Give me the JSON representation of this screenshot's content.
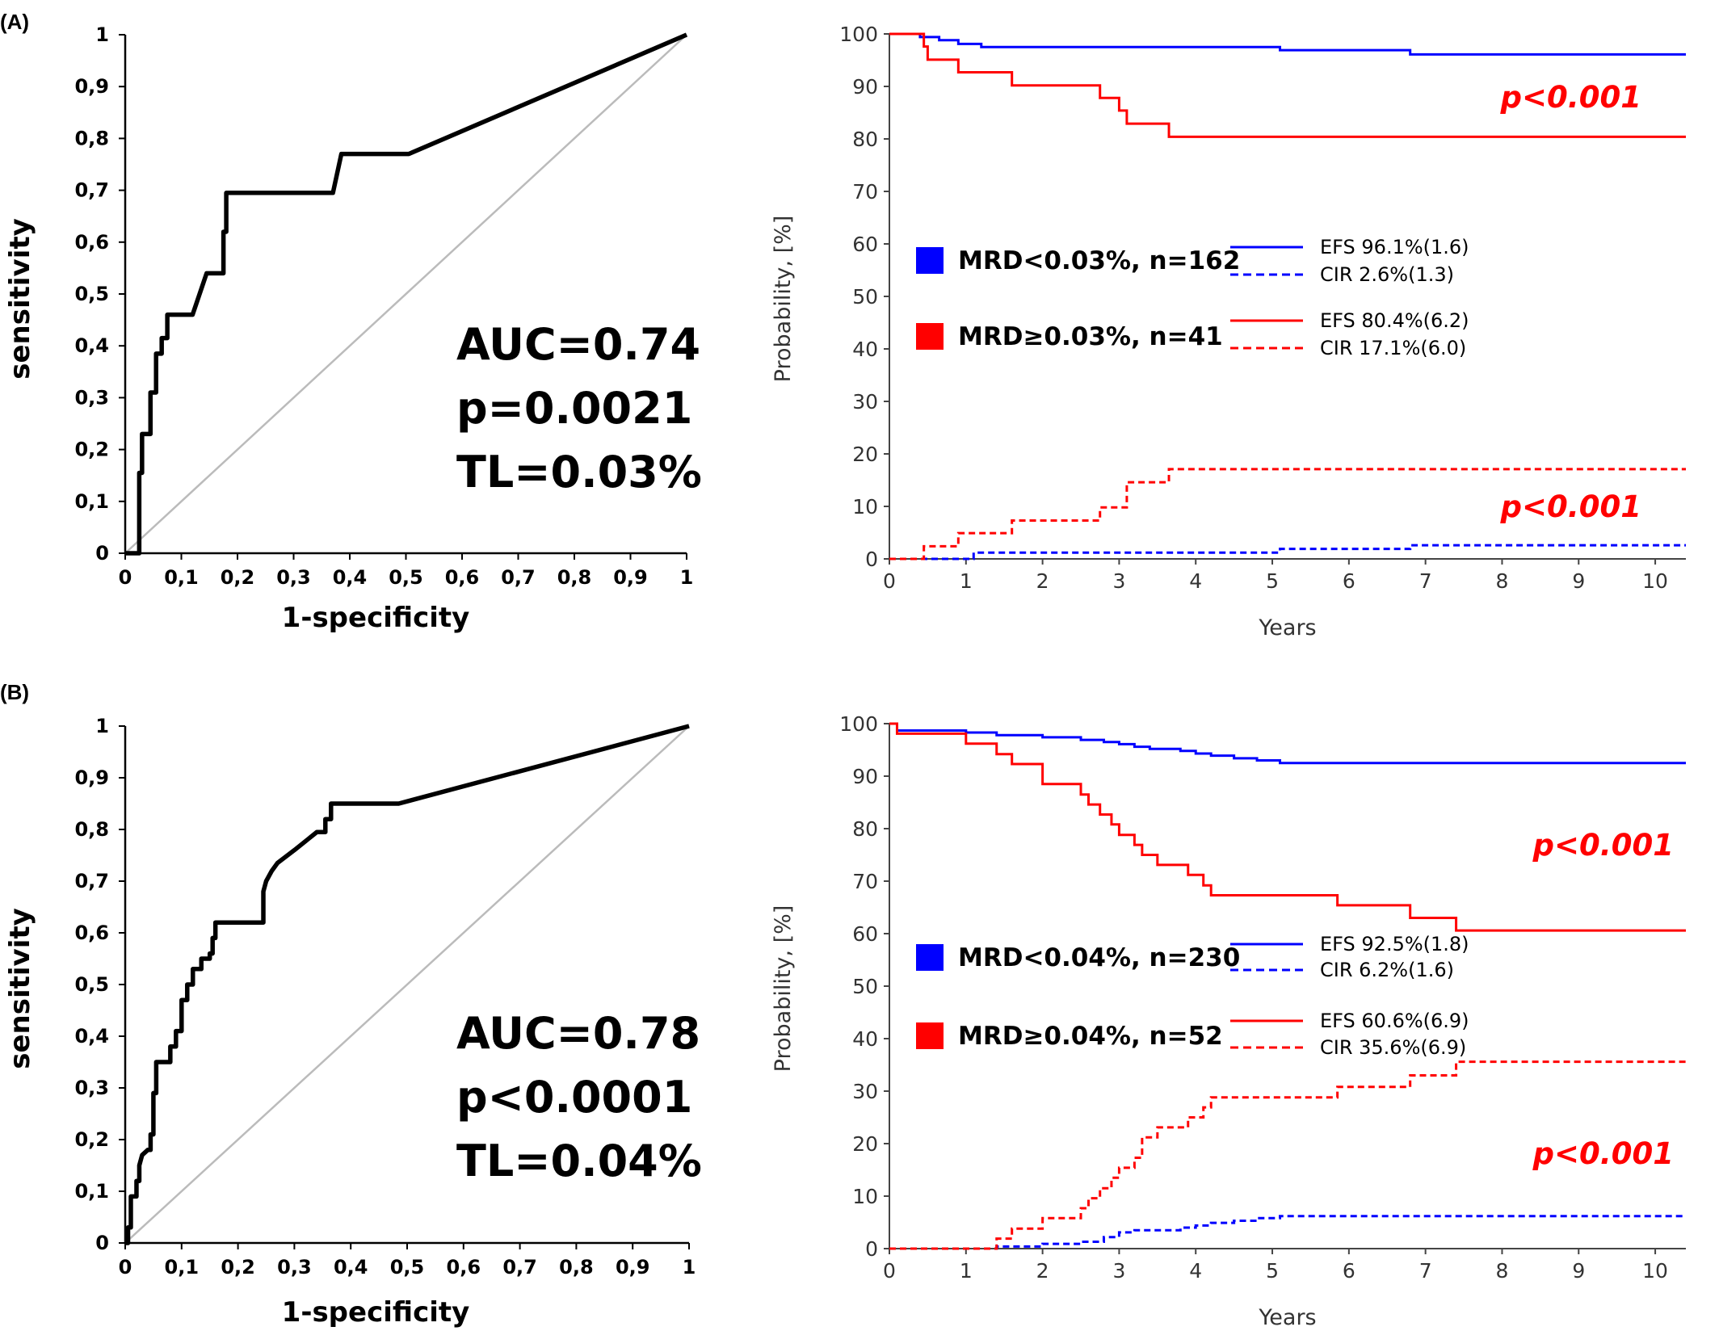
{
  "colors": {
    "blue": "#0000ff",
    "red": "#ff0000",
    "black": "#000000",
    "diag": "#bbbbbb"
  },
  "chart_data": [
    {
      "type": "line",
      "panel": "(A)",
      "xlabel": "1-specificity",
      "ylabel": "sensitivity",
      "xlim": [
        0,
        1
      ],
      "ylim": [
        0,
        1
      ],
      "x_tick_labels": [
        "0",
        "0,1",
        "0,2",
        "0,3",
        "0,4",
        "0,5",
        "0,6",
        "0,7",
        "0,8",
        "0,9",
        "1"
      ],
      "y_tick_labels": [
        "0",
        "0,1",
        "0,2",
        "0,3",
        "0,4",
        "0,5",
        "0,6",
        "0,7",
        "0,8",
        "0,9",
        "1"
      ],
      "annotations": [
        "AUC=0.74",
        "p=0.0021",
        "TL=0.03%"
      ],
      "series": [
        {
          "x": [
            0,
            0.025,
            0.025,
            0.03,
            0.03,
            0.045,
            0.045,
            0.055,
            0.055,
            0.065,
            0.065,
            0.075,
            0.075,
            0.12,
            0.145,
            0.175,
            0.175,
            0.18,
            0.18,
            0.37,
            0.385,
            0.385,
            0.505,
            1
          ],
          "y": [
            0,
            0,
            0.155,
            0.155,
            0.23,
            0.23,
            0.31,
            0.31,
            0.385,
            0.385,
            0.415,
            0.415,
            0.46,
            0.46,
            0.54,
            0.54,
            0.62,
            0.62,
            0.695,
            0.695,
            0.77,
            0.77,
            0.77,
            1
          ]
        },
        {
          "x": [
            0,
            1
          ],
          "y": [
            0,
            1
          ]
        }
      ]
    },
    {
      "type": "line",
      "xlabel": "Years",
      "ylabel": "Probability, [%]",
      "xlim": [
        0,
        10.4
      ],
      "ylim": [
        0,
        100
      ],
      "x_ticks": [
        0,
        1,
        2,
        3,
        4,
        5,
        6,
        7,
        8,
        9,
        10
      ],
      "y_ticks": [
        0,
        10,
        20,
        30,
        40,
        50,
        60,
        70,
        80,
        90,
        100
      ],
      "groups": [
        {
          "label": "MRD<0.03%, n=162",
          "color": "blue"
        },
        {
          "label": "MRD≥0.03%, n=41",
          "color": "red"
        }
      ],
      "p_values": [
        "p<0.001",
        "p<0.001"
      ],
      "series": [
        {
          "name": "EFS 96.1%(1.6)",
          "color": "blue",
          "dash": false,
          "x": [
            0,
            0.4,
            0.4,
            0.65,
            0.65,
            0.9,
            0.9,
            1.2,
            1.2,
            5.1,
            5.1,
            6.8,
            6.8,
            10.4
          ],
          "y": [
            100,
            100,
            99.4,
            99.4,
            98.8,
            98.8,
            98.1,
            98.1,
            97.5,
            97.5,
            96.9,
            96.9,
            96.1,
            96.1
          ]
        },
        {
          "name": "CIR 2.6%(1.3)",
          "color": "blue",
          "dash": true,
          "x": [
            0,
            1.1,
            1.1,
            5.1,
            5.1,
            6.8,
            6.8,
            10.4
          ],
          "y": [
            0,
            0,
            1.2,
            1.2,
            1.9,
            1.9,
            2.6,
            2.6
          ]
        },
        {
          "name": "EFS 80.4%(6.2)",
          "color": "red",
          "dash": false,
          "x": [
            0,
            0.45,
            0.45,
            0.5,
            0.5,
            0.9,
            0.9,
            1.6,
            1.6,
            2.75,
            2.75,
            3.0,
            3.0,
            3.1,
            3.1,
            3.65,
            3.65,
            10.4
          ],
          "y": [
            100,
            100,
            97.6,
            97.6,
            95.1,
            95.1,
            92.7,
            92.7,
            90.2,
            90.2,
            87.8,
            87.8,
            85.4,
            85.4,
            82.9,
            82.9,
            80.4,
            80.4
          ]
        },
        {
          "name": "CIR 17.1%(6.0)",
          "color": "red",
          "dash": true,
          "x": [
            0,
            0.45,
            0.45,
            0.9,
            0.9,
            1.6,
            1.6,
            2.75,
            2.75,
            3.1,
            3.1,
            3.65,
            3.65,
            10.4
          ],
          "y": [
            0,
            0,
            2.4,
            2.4,
            4.9,
            4.9,
            7.3,
            7.3,
            9.8,
            9.8,
            14.6,
            14.6,
            17.1,
            17.1
          ]
        }
      ]
    },
    {
      "type": "line",
      "panel": "(B)",
      "xlabel": "1-specificity",
      "ylabel": "sensitivity",
      "xlim": [
        0,
        1
      ],
      "ylim": [
        0,
        1
      ],
      "x_tick_labels": [
        "0",
        "0,1",
        "0,2",
        "0,3",
        "0,4",
        "0,5",
        "0,6",
        "0,7",
        "0,8",
        "0,9",
        "1"
      ],
      "y_tick_labels": [
        "0",
        "0,1",
        "0,2",
        "0,3",
        "0,4",
        "0,5",
        "0,6",
        "0,7",
        "0,8",
        "0,9",
        "1"
      ],
      "annotations": [
        "AUC=0.78",
        "p<0.0001",
        "TL=0.04%"
      ],
      "series": [
        {
          "x": [
            0,
            0.005,
            0.005,
            0.01,
            0.01,
            0.02,
            0.02,
            0.025,
            0.025,
            0.03,
            0.04,
            0.045,
            0.045,
            0.05,
            0.05,
            0.055,
            0.055,
            0.08,
            0.08,
            0.09,
            0.09,
            0.1,
            0.1,
            0.11,
            0.11,
            0.12,
            0.12,
            0.135,
            0.135,
            0.15,
            0.15,
            0.155,
            0.155,
            0.16,
            0.16,
            0.165,
            0.165,
            0.245,
            0.245,
            0.25,
            0.26,
            0.27,
            0.3,
            0.34,
            0.355,
            0.355,
            0.365,
            0.365,
            0.485,
            1
          ],
          "y": [
            0,
            0,
            0.03,
            0.03,
            0.09,
            0.09,
            0.12,
            0.12,
            0.15,
            0.17,
            0.18,
            0.18,
            0.21,
            0.21,
            0.29,
            0.29,
            0.35,
            0.35,
            0.38,
            0.38,
            0.41,
            0.41,
            0.47,
            0.47,
            0.5,
            0.5,
            0.53,
            0.53,
            0.55,
            0.55,
            0.56,
            0.56,
            0.59,
            0.59,
            0.62,
            0.62,
            0.62,
            0.62,
            0.68,
            0.7,
            0.72,
            0.735,
            0.76,
            0.795,
            0.795,
            0.82,
            0.82,
            0.85,
            0.85,
            1
          ]
        },
        {
          "x": [
            0,
            1
          ],
          "y": [
            0,
            1
          ]
        }
      ]
    },
    {
      "type": "line",
      "xlabel": "Years",
      "ylabel": "Probability, [%]",
      "xlim": [
        0,
        10.4
      ],
      "ylim": [
        0,
        100
      ],
      "x_ticks": [
        0,
        1,
        2,
        3,
        4,
        5,
        6,
        7,
        8,
        9,
        10
      ],
      "y_ticks": [
        0,
        10,
        20,
        30,
        40,
        50,
        60,
        70,
        80,
        90,
        100
      ],
      "groups": [
        {
          "label": "MRD<0.04%, n=230",
          "color": "blue"
        },
        {
          "label": "MRD≥0.04%, n=52",
          "color": "red"
        }
      ],
      "p_values": [
        "p<0.001",
        "p<0.001"
      ],
      "series": [
        {
          "name": "EFS 92.5%(1.8)",
          "color": "blue",
          "dash": false,
          "x": [
            0,
            0.1,
            0.1,
            1.0,
            1.0,
            1.4,
            1.4,
            2.0,
            2.0,
            2.5,
            2.5,
            2.8,
            2.8,
            3.0,
            3.0,
            3.2,
            3.2,
            3.4,
            3.4,
            3.8,
            3.8,
            4.0,
            4.0,
            4.2,
            4.2,
            4.5,
            4.5,
            4.8,
            4.8,
            5.1,
            5.1,
            10.4
          ],
          "y": [
            100,
            100,
            98.7,
            98.7,
            98.3,
            98.3,
            97.8,
            97.8,
            97.4,
            97.4,
            96.9,
            96.9,
            96.5,
            96.5,
            96.1,
            96.1,
            95.6,
            95.6,
            95.2,
            95.2,
            94.8,
            94.8,
            94.3,
            94.3,
            93.9,
            93.9,
            93.4,
            93.4,
            93.0,
            93.0,
            92.5,
            92.5
          ]
        },
        {
          "name": "CIR 6.2%(1.6)",
          "color": "blue",
          "dash": true,
          "x": [
            0,
            1.4,
            1.4,
            2.0,
            2.0,
            2.5,
            2.5,
            2.8,
            2.8,
            3.0,
            3.0,
            3.2,
            3.2,
            3.8,
            3.8,
            4.0,
            4.0,
            4.2,
            4.2,
            4.5,
            4.5,
            4.8,
            4.8,
            5.1,
            5.1,
            10.4
          ],
          "y": [
            0,
            0,
            0.4,
            0.4,
            0.9,
            0.9,
            1.3,
            1.3,
            2.2,
            2.2,
            3.1,
            3.1,
            3.5,
            3.5,
            4.0,
            4.0,
            4.4,
            4.4,
            4.9,
            4.9,
            5.3,
            5.3,
            5.8,
            5.8,
            6.2,
            6.2
          ]
        },
        {
          "name": "EFS 60.6%(6.9)",
          "color": "red",
          "dash": false,
          "x": [
            0,
            0.1,
            0.1,
            1.0,
            1.0,
            1.4,
            1.4,
            1.6,
            1.6,
            1.7,
            1.7,
            2.0,
            2.0,
            2.5,
            2.5,
            2.6,
            2.6,
            2.75,
            2.75,
            2.9,
            2.9,
            3.0,
            3.0,
            3.2,
            3.2,
            3.3,
            3.3,
            3.5,
            3.5,
            3.9,
            3.9,
            4.1,
            4.1,
            4.2,
            4.2,
            5.85,
            5.85,
            6.8,
            6.8,
            7.4,
            7.4,
            10.4
          ],
          "y": [
            100,
            100,
            98.1,
            98.1,
            96.2,
            96.2,
            94.2,
            94.2,
            92.3,
            92.3,
            92.3,
            92.3,
            88.5,
            88.5,
            86.5,
            86.5,
            84.6,
            84.6,
            82.7,
            82.7,
            80.8,
            80.8,
            78.8,
            78.8,
            76.9,
            76.9,
            75.0,
            75.0,
            73.1,
            73.1,
            71.2,
            71.2,
            69.2,
            69.2,
            67.3,
            67.3,
            65.4,
            65.4,
            63.0,
            63.0,
            60.6,
            60.6
          ]
        },
        {
          "name": "CIR 35.6%(6.9)",
          "color": "red",
          "dash": true,
          "x": [
            0,
            1.4,
            1.4,
            1.6,
            1.6,
            2.0,
            2.0,
            2.5,
            2.5,
            2.6,
            2.6,
            2.75,
            2.75,
            2.9,
            2.9,
            3.0,
            3.0,
            3.2,
            3.2,
            3.3,
            3.3,
            3.5,
            3.5,
            3.9,
            3.9,
            4.1,
            4.1,
            4.2,
            4.2,
            5.85,
            5.85,
            6.8,
            6.8,
            7.4,
            7.4,
            10.4
          ],
          "y": [
            0,
            0,
            1.9,
            1.9,
            3.8,
            3.8,
            5.8,
            5.8,
            7.7,
            7.7,
            9.6,
            9.6,
            11.5,
            11.5,
            13.5,
            13.5,
            15.4,
            15.4,
            17.3,
            17.3,
            21.2,
            21.2,
            23.1,
            23.1,
            25.0,
            25.0,
            26.9,
            26.9,
            28.8,
            28.8,
            30.8,
            30.8,
            33.0,
            33.0,
            35.6,
            35.6
          ]
        }
      ]
    }
  ]
}
